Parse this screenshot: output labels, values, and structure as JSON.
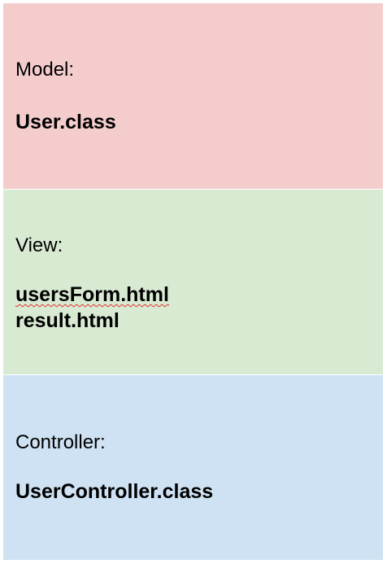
{
  "sections": {
    "model": {
      "label": "Model:",
      "files": [
        "User.class"
      ],
      "color": "#f4cccc"
    },
    "view": {
      "label": "View:",
      "files": [
        "usersForm.html",
        "result.html"
      ],
      "color": "#d9ead3"
    },
    "controller": {
      "label": "Controller:",
      "files": [
        "UserController.class"
      ],
      "color": "#cfe2f3"
    }
  }
}
